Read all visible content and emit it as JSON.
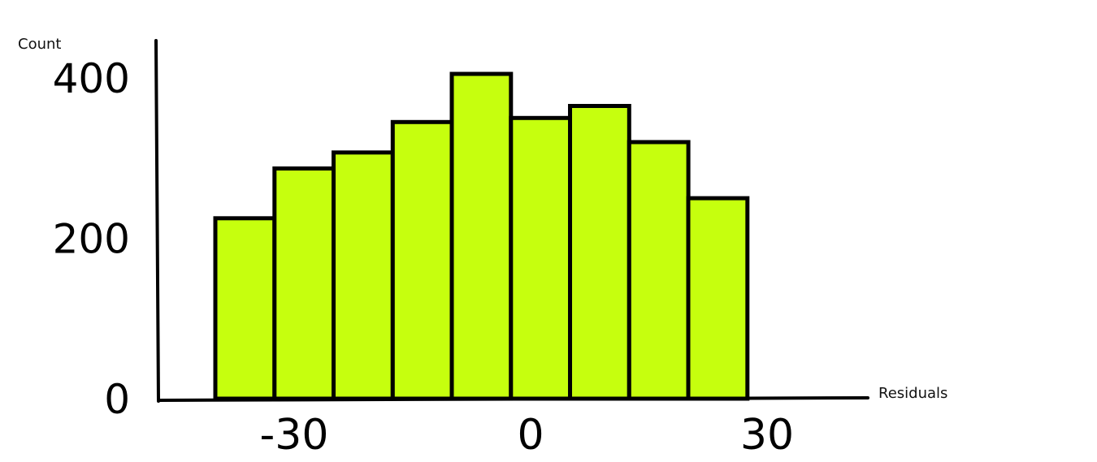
{
  "chart_data": {
    "type": "bar",
    "title": "",
    "xlabel": "Residuals",
    "ylabel": "Count",
    "bar_color": "#C6FF0E",
    "edge_color": "#000000",
    "xlim": [
      -50,
      65
    ],
    "ylim": [
      0,
      455
    ],
    "grid": false,
    "bins": [
      {
        "x0": -40,
        "x1": -32.5,
        "count": 225
      },
      {
        "x0": -32.5,
        "x1": -25,
        "count": 287
      },
      {
        "x0": -25,
        "x1": -17.5,
        "count": 307
      },
      {
        "x0": -17.5,
        "x1": -10,
        "count": 345
      },
      {
        "x0": -10,
        "x1": -2.5,
        "count": 405
      },
      {
        "x0": -2.5,
        "x1": 5,
        "count": 350
      },
      {
        "x0": 5,
        "x1": 12.5,
        "count": 365
      },
      {
        "x0": 12.5,
        "x1": 20,
        "count": 320
      },
      {
        "x0": 20,
        "x1": 27.5,
        "count": 250
      }
    ],
    "x_ticks": [
      {
        "value": -30,
        "label": "-30"
      },
      {
        "value": 0,
        "label": "0"
      },
      {
        "value": 30,
        "label": "30"
      }
    ],
    "y_ticks": [
      {
        "value": 0,
        "label": "0"
      },
      {
        "value": 200,
        "label": "200"
      },
      {
        "value": 400,
        "label": "400"
      }
    ]
  }
}
